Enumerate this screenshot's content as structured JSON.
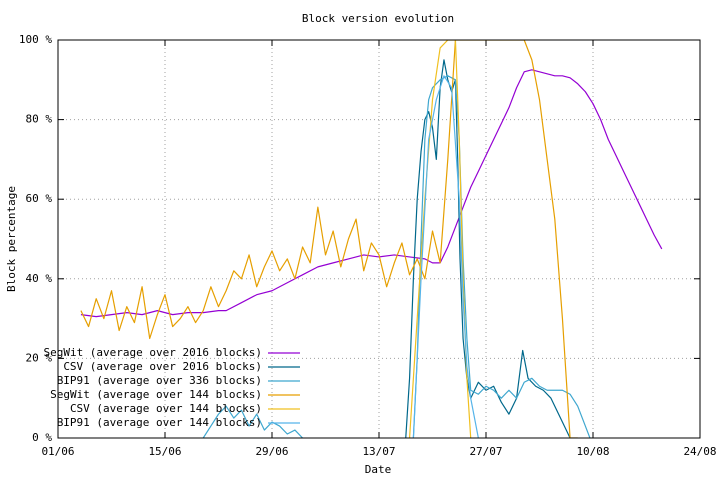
{
  "chart_data": {
    "type": "line",
    "title": "Block version evolution",
    "x_label": "Date",
    "y_label": "Block percentage",
    "xlim": [
      0,
      84
    ],
    "xticks": [
      {
        "value": 0,
        "label": "01/06"
      },
      {
        "value": 14,
        "label": "15/06"
      },
      {
        "value": 28,
        "label": "29/06"
      },
      {
        "value": 42,
        "label": "13/07"
      },
      {
        "value": 56,
        "label": "27/07"
      },
      {
        "value": 70,
        "label": "10/08"
      },
      {
        "value": 84,
        "label": "24/08"
      }
    ],
    "ylim": [
      0,
      100
    ],
    "yticks": [
      {
        "value": 0,
        "label": "0 %"
      },
      {
        "value": 20,
        "label": "20 %"
      },
      {
        "value": 40,
        "label": "40 %"
      },
      {
        "value": 60,
        "label": "60 %"
      },
      {
        "value": 80,
        "label": "80 %"
      },
      {
        "value": 100,
        "label": "100 %"
      }
    ],
    "grid": true,
    "legend": "bottom left",
    "series": [
      {
        "name": "SegWit (average over 2016 blocks)",
        "color": "#9400d3",
        "x": [
          3,
          5,
          7,
          9,
          11,
          13,
          15,
          17,
          19,
          21,
          22,
          24,
          26,
          28,
          30,
          32,
          34,
          36,
          38,
          40,
          42,
          44,
          46,
          48,
          49,
          50,
          51,
          52,
          53,
          54,
          55,
          56,
          57,
          58,
          59,
          60,
          61,
          62,
          63,
          64,
          65,
          66,
          67,
          68,
          69,
          70,
          71,
          72,
          73,
          74,
          75,
          76,
          77,
          78,
          79
        ],
        "values": [
          31,
          30.5,
          31,
          31.5,
          31,
          32,
          31,
          31.5,
          31.5,
          32,
          32,
          34,
          36,
          37,
          39,
          41,
          43,
          44,
          45,
          46,
          45.5,
          46,
          45.5,
          45,
          44,
          44,
          48,
          53,
          58,
          63,
          67,
          71,
          75,
          79,
          83,
          88,
          92,
          92.5,
          92,
          91.5,
          91,
          91,
          90.5,
          89,
          87,
          84,
          80,
          75,
          71,
          67,
          63,
          59,
          55,
          51,
          47.5
        ]
      },
      {
        "name": "CSV (average over 2016 blocks)",
        "color": "#00688b",
        "x": [
          45.5,
          46,
          46.5,
          47,
          47.5,
          48,
          48.5,
          49,
          49.5,
          50,
          50.5,
          51,
          51.5,
          52,
          52.3,
          52.6,
          53,
          53.5,
          54,
          55,
          56,
          57,
          58,
          59,
          60,
          60.8,
          61.5,
          62.5,
          63.5,
          64.5,
          65.5,
          66.5,
          67
        ],
        "values": [
          0,
          15,
          40,
          60,
          72,
          80,
          82,
          78,
          70,
          88,
          95,
          90,
          87,
          90,
          70,
          45,
          25,
          15,
          10,
          14,
          12,
          13,
          9,
          6,
          10,
          22,
          15,
          13,
          12,
          10,
          6,
          2,
          0
        ]
      },
      {
        "name": "BIP91 (average over 336 blocks)",
        "color": "#3fa7cf",
        "x": [
          19,
          20,
          21,
          22,
          23,
          24,
          25,
          26,
          27,
          28,
          29,
          30,
          31,
          32,
          33,
          46.5,
          47,
          47.5,
          48,
          48.5,
          49,
          50,
          51,
          52,
          52.5,
          53,
          53.5,
          54,
          55,
          56,
          57,
          58,
          59,
          60,
          61,
          62,
          63,
          64,
          65,
          66,
          67,
          68,
          69,
          69.6
        ],
        "values": [
          0,
          3,
          6,
          8,
          5,
          7,
          3,
          6,
          2,
          4,
          3,
          1,
          2,
          0,
          null,
          0,
          20,
          50,
          75,
          85,
          88,
          90,
          91,
          90,
          75,
          45,
          25,
          12,
          11,
          13,
          12,
          10,
          12,
          10,
          14,
          15,
          13,
          12,
          12,
          12,
          11,
          8,
          3,
          0
        ]
      },
      {
        "name": "SegWit (average over 144 blocks)",
        "color": "#e69f00",
        "x": [
          3,
          4,
          5,
          6,
          7,
          8,
          9,
          10,
          11,
          12,
          13,
          14,
          15,
          16,
          17,
          18,
          19,
          20,
          21,
          22,
          23,
          24,
          25,
          26,
          27,
          28,
          29,
          30,
          31,
          32,
          33,
          34,
          35,
          36,
          37,
          38,
          39,
          40,
          41,
          42,
          43,
          44,
          45,
          46,
          47,
          48,
          49,
          50,
          51,
          52,
          53,
          54,
          55,
          56,
          57,
          58,
          59,
          60,
          61,
          62,
          63,
          64,
          65,
          66,
          67,
          68
        ],
        "values": [
          32,
          28,
          35,
          30,
          37,
          27,
          33,
          29,
          38,
          25,
          31,
          36,
          28,
          30,
          33,
          29,
          32,
          38,
          33,
          37,
          42,
          40,
          46,
          38,
          43,
          47,
          42,
          45,
          40,
          48,
          44,
          58,
          46,
          52,
          43,
          50,
          55,
          42,
          49,
          46,
          38,
          44,
          49,
          41,
          45,
          40,
          52,
          44,
          70,
          100,
          100,
          100,
          100,
          100,
          100,
          100,
          100,
          100,
          100,
          95,
          85,
          70,
          55,
          30,
          0,
          0
        ]
      },
      {
        "name": "CSV (average over 144 blocks)",
        "color": "#f0c020",
        "x": [
          46,
          47,
          48,
          49,
          50,
          51,
          52,
          52.5,
          53,
          53.5,
          54
        ],
        "values": [
          0,
          30,
          60,
          85,
          98,
          100,
          100,
          75,
          40,
          15,
          0
        ]
      },
      {
        "name": "BIP91 (average over 144 blocks)",
        "color": "#56b4e9",
        "x": [
          46.5,
          47.5,
          48.5,
          49.5,
          50.5,
          51.5,
          52.5,
          53,
          53.5,
          54,
          55
        ],
        "values": [
          0,
          40,
          75,
          85,
          91,
          88,
          60,
          35,
          18,
          10,
          0
        ]
      }
    ]
  }
}
